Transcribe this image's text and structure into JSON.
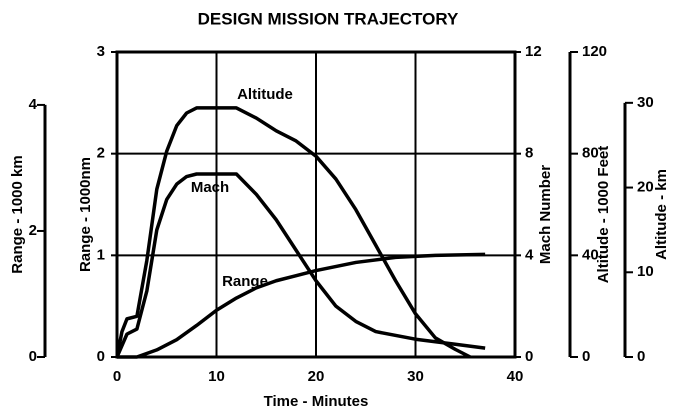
{
  "chart_data": {
    "type": "line",
    "title": "DESIGN MISSION TRAJECTORY",
    "xlabel": "Time - Minutes",
    "xlim": [
      0,
      40
    ],
    "xticks": [
      0,
      10,
      20,
      30,
      40
    ],
    "grid": true,
    "y_axes": [
      {
        "label": "Range - 1000 km",
        "lim": [
          0,
          4.84
        ],
        "ticks": [
          0,
          2,
          4
        ]
      },
      {
        "label": "Range - 1000nm",
        "lim": [
          0,
          3
        ],
        "ticks": [
          0,
          1,
          2,
          3
        ]
      },
      {
        "label": "Mach Number",
        "lim": [
          0,
          12
        ],
        "ticks": [
          0,
          4,
          8,
          12
        ]
      },
      {
        "label": "Altitude - 1000 Feet",
        "lim": [
          0,
          120
        ],
        "ticks": [
          0,
          40,
          80,
          120
        ]
      },
      {
        "label": "Altitude - km",
        "lim": [
          0,
          36
        ],
        "ticks": [
          0,
          10,
          20,
          30
        ]
      }
    ],
    "series": [
      {
        "name": "Altitude",
        "color": "#000000",
        "axis": 3,
        "x": [
          0,
          0.5,
          1,
          2,
          3,
          4,
          5,
          6,
          7,
          8,
          12,
          14,
          16,
          18,
          20,
          22,
          24,
          26,
          28,
          30,
          32,
          34,
          35.5
        ],
        "values": [
          0,
          10,
          15,
          16,
          38,
          66,
          81,
          91,
          96,
          98,
          98,
          94,
          89,
          85,
          79,
          70,
          58,
          44,
          30,
          17,
          7.5,
          3,
          0
        ]
      },
      {
        "name": "Mach",
        "color": "#000000",
        "axis": 2,
        "x": [
          0,
          1,
          2,
          3,
          4,
          5,
          6,
          7,
          8,
          12,
          14,
          16,
          18,
          20,
          22,
          24,
          26,
          30,
          34,
          37
        ],
        "values": [
          0,
          0.9,
          1.1,
          2.6,
          5.0,
          6.2,
          6.8,
          7.1,
          7.2,
          7.2,
          6.4,
          5.4,
          4.2,
          3.0,
          2.0,
          1.4,
          1.0,
          0.7,
          0.5,
          0.35
        ]
      },
      {
        "name": "Range",
        "color": "#000000",
        "axis": 1,
        "x": [
          0,
          2,
          4,
          6,
          8,
          10,
          12,
          14,
          16,
          18,
          20,
          24,
          28,
          32,
          37
        ],
        "values": [
          0,
          0,
          0.07,
          0.17,
          0.31,
          0.46,
          0.58,
          0.68,
          0.75,
          0.8,
          0.85,
          0.93,
          0.98,
          1.0,
          1.01
        ]
      }
    ]
  }
}
